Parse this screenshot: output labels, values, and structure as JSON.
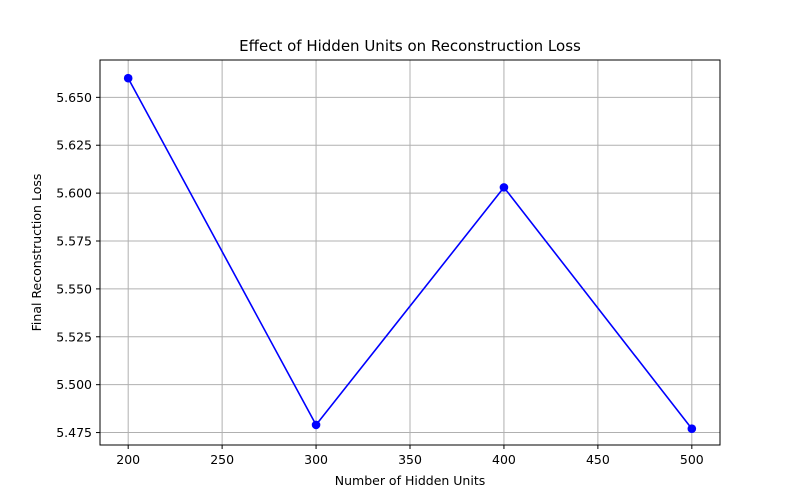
{
  "chart_data": {
    "type": "line",
    "title": "Effect of Hidden Units on Reconstruction Loss",
    "xlabel": "Number of Hidden Units",
    "ylabel": "Final Reconstruction Loss",
    "x": [
      200,
      300,
      400,
      500
    ],
    "series": [
      {
        "values": [
          5.66,
          5.479,
          5.603,
          5.477
        ],
        "color": "#0000ff",
        "marker": "circle"
      }
    ],
    "xlim": [
      185,
      515
    ],
    "ylim": [
      5.4685,
      5.6695
    ],
    "xticks": [
      200,
      250,
      300,
      350,
      400,
      450,
      500
    ],
    "yticks": [
      5.475,
      5.5,
      5.525,
      5.55,
      5.575,
      5.6,
      5.625,
      5.65
    ],
    "ytick_labels": [
      "5.475",
      "5.500",
      "5.525",
      "5.550",
      "5.575",
      "5.600",
      "5.625",
      "5.650"
    ],
    "grid": true,
    "grid_color": "#b0b0b0",
    "legend": "none"
  }
}
